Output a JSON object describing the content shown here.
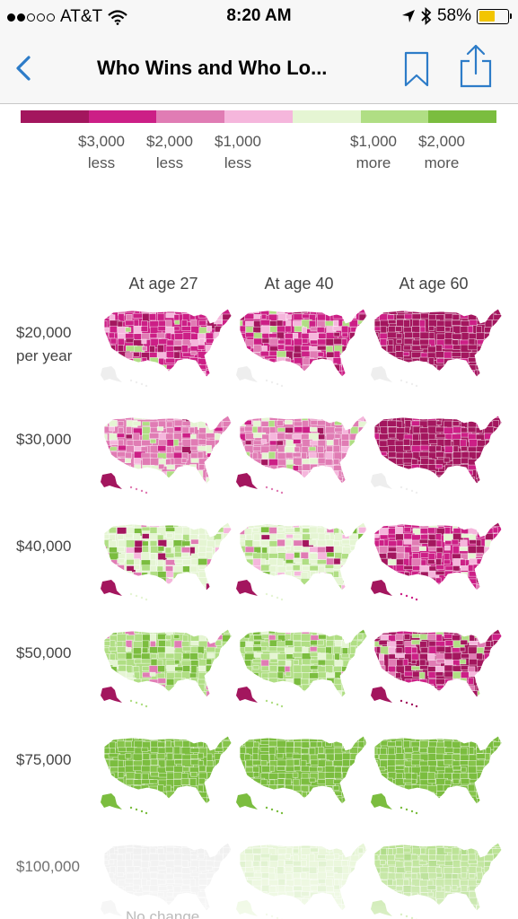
{
  "status_bar": {
    "carrier": "AT&T",
    "time": "8:20 AM",
    "battery": "58%",
    "battery_level": 0.58
  },
  "nav": {
    "title": "Who Wins and Who Lo...",
    "back_icon": "chevron-left-icon",
    "bookmark_icon": "bookmark-icon",
    "share_icon": "share-icon"
  },
  "legend": {
    "colors": [
      "#a3165e",
      "#cc1f86",
      "#e07cb4",
      "#f5b6dc",
      "#e5f5d3",
      "#b0de84",
      "#7bbd3f"
    ],
    "labels": [
      {
        "line1": "$3,000",
        "line2": "less"
      },
      {
        "line1": "$2,000",
        "line2": "less"
      },
      {
        "line1": "$1,000",
        "line2": "less"
      },
      {
        "line1": "$1,000",
        "line2": "more"
      },
      {
        "line1": "$2,000",
        "line2": "more"
      }
    ]
  },
  "columns": [
    "At age 27",
    "At age 40",
    "At age 60"
  ],
  "rows": [
    {
      "line1": "$20,000",
      "line2": "per year",
      "maps": [
        "mixed-pink",
        "mixed-pink",
        "dark-pink"
      ]
    },
    {
      "line1": "$30,000",
      "line2": "",
      "maps": [
        "mixed-light",
        "mixed-light",
        "dark-pink"
      ]
    },
    {
      "line1": "$40,000",
      "line2": "",
      "maps": [
        "mixed-green-light",
        "mixed-green-light",
        "mostly-pink"
      ]
    },
    {
      "line1": "$50,000",
      "line2": "",
      "maps": [
        "mostly-green",
        "mostly-green",
        "mostly-pink-mix"
      ]
    },
    {
      "line1": "$75,000",
      "line2": "",
      "maps": [
        "green",
        "green",
        "green"
      ]
    },
    {
      "line1": "$100,000",
      "line2": "",
      "maps": [
        "gray",
        "pale-green",
        "light-green"
      ]
    }
  ],
  "footer_note": "No change"
}
